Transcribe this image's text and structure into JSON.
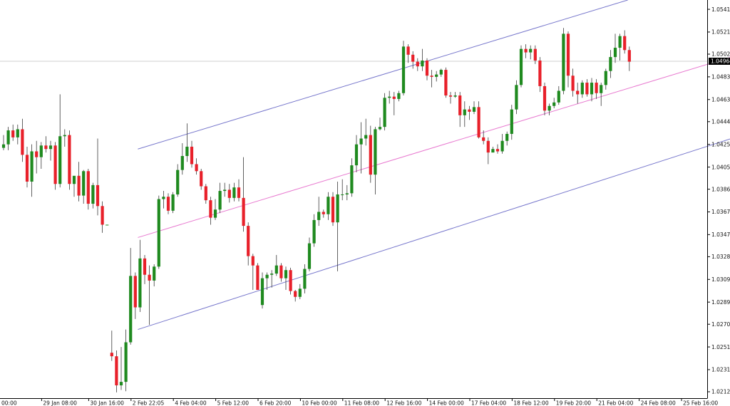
{
  "chart_data": {
    "type": "candlestick",
    "legend": "none",
    "grid": false,
    "colors": {
      "bull": "#1f8a1f",
      "bear": "#e8202a",
      "wick": "#3a3a3a",
      "channel": "#7777cc",
      "midline": "#e87ad0",
      "current_price_line": "#cfcfcf",
      "price_tag_bg": "#000000",
      "axis": "#000000"
    },
    "ylim": [
      1.0207,
      1.0549
    ],
    "y_ticks": [
      "1.05410",
      "1.05215",
      "1.05025",
      "1.04830",
      "1.04635",
      "1.04445",
      "1.04250",
      "1.04055",
      "1.03865",
      "1.03670",
      "1.03475",
      "1.03285",
      "1.03090",
      "1.02895",
      "1.02705",
      "1.02510",
      "1.02315",
      "1.02125"
    ],
    "x_ticks": [
      "00:00",
      "29 Jan 08:00",
      "30 Jan 16:00",
      "2 Feb 22:05",
      "4 Feb 04:00",
      "5 Feb 12:00",
      "6 Feb 20:00",
      "10 Feb 00:00",
      "11 Feb 08:00",
      "12 Feb 16:00",
      "14 Feb 00:00",
      "17 Feb 04:00",
      "18 Feb 12:00",
      "19 Feb 20:00",
      "21 Feb 04:00",
      "24 Feb 08:00",
      "25 Feb 16:00"
    ],
    "x_tick_bar_index": [
      0,
      9,
      19,
      28,
      37,
      46,
      55,
      64,
      73,
      82,
      91,
      100,
      109,
      118,
      127,
      136,
      145
    ],
    "current_price": "1.04964",
    "candles": [
      {
        "o": 1.0422,
        "h": 1.0433,
        "l": 1.042,
        "c": 1.0425
      },
      {
        "o": 1.0425,
        "h": 1.044,
        "l": 1.042,
        "c": 1.0437
      },
      {
        "o": 1.0437,
        "h": 1.0442,
        "l": 1.0428,
        "c": 1.0431
      },
      {
        "o": 1.0431,
        "h": 1.0442,
        "l": 1.0425,
        "c": 1.0438
      },
      {
        "o": 1.0438,
        "h": 1.0447,
        "l": 1.041,
        "c": 1.0416
      },
      {
        "o": 1.0416,
        "h": 1.0423,
        "l": 1.0388,
        "c": 1.0393
      },
      {
        "o": 1.0393,
        "h": 1.0425,
        "l": 1.038,
        "c": 1.0419
      },
      {
        "o": 1.0419,
        "h": 1.0428,
        "l": 1.04,
        "c": 1.0414
      },
      {
        "o": 1.0414,
        "h": 1.0427,
        "l": 1.0404,
        "c": 1.0424
      },
      {
        "o": 1.0424,
        "h": 1.0432,
        "l": 1.0418,
        "c": 1.0421
      },
      {
        "o": 1.0421,
        "h": 1.0428,
        "l": 1.0411,
        "c": 1.0424
      },
      {
        "o": 1.0424,
        "h": 1.0427,
        "l": 1.0386,
        "c": 1.0391
      },
      {
        "o": 1.0391,
        "h": 1.0468,
        "l": 1.0388,
        "c": 1.0432
      },
      {
        "o": 1.0432,
        "h": 1.0438,
        "l": 1.0423,
        "c": 1.0433
      },
      {
        "o": 1.0433,
        "h": 1.0437,
        "l": 1.0386,
        "c": 1.0391
      },
      {
        "o": 1.0391,
        "h": 1.0395,
        "l": 1.038,
        "c": 1.0398
      },
      {
        "o": 1.0398,
        "h": 1.041,
        "l": 1.0376,
        "c": 1.0381
      },
      {
        "o": 1.0381,
        "h": 1.0403,
        "l": 1.0374,
        "c": 1.0402
      },
      {
        "o": 1.0402,
        "h": 1.0404,
        "l": 1.0369,
        "c": 1.0374
      },
      {
        "o": 1.0374,
        "h": 1.0392,
        "l": 1.037,
        "c": 1.039
      },
      {
        "o": 1.039,
        "h": 1.043,
        "l": 1.0364,
        "c": 1.0372
      },
      {
        "o": 1.0372,
        "h": 1.0376,
        "l": 1.0349,
        "c": 1.0356
      },
      {
        "o": 1.0356,
        "h": 1.0356,
        "l": 1.0356,
        "c": 1.0356
      },
      {
        "o": 1.0246,
        "h": 1.0265,
        "l": 1.0239,
        "c": 1.0243
      },
      {
        "o": 1.0243,
        "h": 1.0248,
        "l": 1.0212,
        "c": 1.0218
      },
      {
        "o": 1.0218,
        "h": 1.0251,
        "l": 1.0214,
        "c": 1.0221
      },
      {
        "o": 1.0221,
        "h": 1.0266,
        "l": 1.0213,
        "c": 1.0255
      },
      {
        "o": 1.0255,
        "h": 1.0336,
        "l": 1.0253,
        "c": 1.0312
      },
      {
        "o": 1.0312,
        "h": 1.0315,
        "l": 1.0275,
        "c": 1.0285
      },
      {
        "o": 1.0285,
        "h": 1.0343,
        "l": 1.0281,
        "c": 1.0327
      },
      {
        "o": 1.0327,
        "h": 1.033,
        "l": 1.0305,
        "c": 1.0313
      },
      {
        "o": 1.0313,
        "h": 1.0321,
        "l": 1.027,
        "c": 1.0308
      },
      {
        "o": 1.0308,
        "h": 1.0322,
        "l": 1.0303,
        "c": 1.032
      },
      {
        "o": 1.032,
        "h": 1.0381,
        "l": 1.0318,
        "c": 1.0378
      },
      {
        "o": 1.0378,
        "h": 1.0385,
        "l": 1.037,
        "c": 1.038
      },
      {
        "o": 1.038,
        "h": 1.0383,
        "l": 1.0365,
        "c": 1.0368
      },
      {
        "o": 1.0368,
        "h": 1.0384,
        "l": 1.0366,
        "c": 1.0382
      },
      {
        "o": 1.0382,
        "h": 1.0408,
        "l": 1.038,
        "c": 1.0403
      },
      {
        "o": 1.0403,
        "h": 1.0426,
        "l": 1.0399,
        "c": 1.0415
      },
      {
        "o": 1.0415,
        "h": 1.0443,
        "l": 1.041,
        "c": 1.0423
      },
      {
        "o": 1.0423,
        "h": 1.0428,
        "l": 1.0405,
        "c": 1.0408
      },
      {
        "o": 1.0408,
        "h": 1.0413,
        "l": 1.0399,
        "c": 1.0402
      },
      {
        "o": 1.0402,
        "h": 1.0404,
        "l": 1.0386,
        "c": 1.0389
      },
      {
        "o": 1.0389,
        "h": 1.0391,
        "l": 1.0374,
        "c": 1.0377
      },
      {
        "o": 1.0377,
        "h": 1.038,
        "l": 1.0356,
        "c": 1.0362
      },
      {
        "o": 1.0362,
        "h": 1.0378,
        "l": 1.036,
        "c": 1.0369
      },
      {
        "o": 1.0369,
        "h": 1.0392,
        "l": 1.0366,
        "c": 1.0385
      },
      {
        "o": 1.0385,
        "h": 1.0392,
        "l": 1.038,
        "c": 1.0386
      },
      {
        "o": 1.0386,
        "h": 1.0391,
        "l": 1.0375,
        "c": 1.0379
      },
      {
        "o": 1.0379,
        "h": 1.0392,
        "l": 1.0376,
        "c": 1.0388
      },
      {
        "o": 1.0388,
        "h": 1.0395,
        "l": 1.0376,
        "c": 1.0379
      },
      {
        "o": 1.0379,
        "h": 1.0414,
        "l": 1.035,
        "c": 1.0355
      },
      {
        "o": 1.0355,
        "h": 1.0358,
        "l": 1.0321,
        "c": 1.0329
      },
      {
        "o": 1.0329,
        "h": 1.0331,
        "l": 1.03,
        "c": 1.0321
      },
      {
        "o": 1.0321,
        "h": 1.0323,
        "l": 1.03,
        "c": 1.03
      },
      {
        "o": 1.0287,
        "h": 1.0315,
        "l": 1.0284,
        "c": 1.031
      },
      {
        "o": 1.031,
        "h": 1.0315,
        "l": 1.03,
        "c": 1.0313
      },
      {
        "o": 1.0313,
        "h": 1.0317,
        "l": 1.0302,
        "c": 1.0314
      },
      {
        "o": 1.0314,
        "h": 1.033,
        "l": 1.0312,
        "c": 1.0321
      },
      {
        "o": 1.0321,
        "h": 1.0323,
        "l": 1.0307,
        "c": 1.031
      },
      {
        "o": 1.031,
        "h": 1.032,
        "l": 1.03,
        "c": 1.0317
      },
      {
        "o": 1.0317,
        "h": 1.0319,
        "l": 1.0296,
        "c": 1.0299
      },
      {
        "o": 1.0299,
        "h": 1.03,
        "l": 1.029,
        "c": 1.0294
      },
      {
        "o": 1.0294,
        "h": 1.0305,
        "l": 1.0292,
        "c": 1.0301
      },
      {
        "o": 1.0301,
        "h": 1.0322,
        "l": 1.0297,
        "c": 1.0318
      },
      {
        "o": 1.0318,
        "h": 1.0345,
        "l": 1.0316,
        "c": 1.034
      },
      {
        "o": 1.034,
        "h": 1.0365,
        "l": 1.0337,
        "c": 1.036
      },
      {
        "o": 1.036,
        "h": 1.038,
        "l": 1.0355,
        "c": 1.0367
      },
      {
        "o": 1.0367,
        "h": 1.0369,
        "l": 1.0362,
        "c": 1.0365
      },
      {
        "o": 1.0365,
        "h": 1.0384,
        "l": 1.036,
        "c": 1.038
      },
      {
        "o": 1.038,
        "h": 1.0384,
        "l": 1.0355,
        "c": 1.0358
      },
      {
        "o": 1.0358,
        "h": 1.0393,
        "l": 1.0316,
        "c": 1.0382
      },
      {
        "o": 1.0382,
        "h": 1.0395,
        "l": 1.0377,
        "c": 1.0382
      },
      {
        "o": 1.0382,
        "h": 1.039,
        "l": 1.0377,
        "c": 1.0383
      },
      {
        "o": 1.0383,
        "h": 1.0413,
        "l": 1.038,
        "c": 1.0407
      },
      {
        "o": 1.0407,
        "h": 1.0433,
        "l": 1.0401,
        "c": 1.0425
      },
      {
        "o": 1.0425,
        "h": 1.0444,
        "l": 1.04,
        "c": 1.043
      },
      {
        "o": 1.043,
        "h": 1.0447,
        "l": 1.0424,
        "c": 1.0433
      },
      {
        "o": 1.0433,
        "h": 1.0441,
        "l": 1.0392,
        "c": 1.0399
      },
      {
        "o": 1.0399,
        "h": 1.044,
        "l": 1.0382,
        "c": 1.0438
      },
      {
        "o": 1.0438,
        "h": 1.0448,
        "l": 1.0437,
        "c": 1.044
      },
      {
        "o": 1.044,
        "h": 1.0469,
        "l": 1.0437,
        "c": 1.0465
      },
      {
        "o": 1.0465,
        "h": 1.0471,
        "l": 1.046,
        "c": 1.0466
      },
      {
        "o": 1.0466,
        "h": 1.047,
        "l": 1.045,
        "c": 1.0464
      },
      {
        "o": 1.0464,
        "h": 1.0471,
        "l": 1.0462,
        "c": 1.0469
      },
      {
        "o": 1.0469,
        "h": 1.0514,
        "l": 1.0467,
        "c": 1.0509
      },
      {
        "o": 1.0509,
        "h": 1.0511,
        "l": 1.0495,
        "c": 1.0502
      },
      {
        "o": 1.0502,
        "h": 1.0505,
        "l": 1.049,
        "c": 1.0496
      },
      {
        "o": 1.0496,
        "h": 1.0499,
        "l": 1.0488,
        "c": 1.0492
      },
      {
        "o": 1.0492,
        "h": 1.0507,
        "l": 1.0488,
        "c": 1.0497
      },
      {
        "o": 1.0497,
        "h": 1.0499,
        "l": 1.048,
        "c": 1.0484
      },
      {
        "o": 1.0484,
        "h": 1.0489,
        "l": 1.0474,
        "c": 1.0483
      },
      {
        "o": 1.0483,
        "h": 1.0488,
        "l": 1.0479,
        "c": 1.0485
      },
      {
        "o": 1.0485,
        "h": 1.049,
        "l": 1.0483,
        "c": 1.0489
      },
      {
        "o": 1.0489,
        "h": 1.0491,
        "l": 1.0465,
        "c": 1.0467
      },
      {
        "o": 1.0467,
        "h": 1.047,
        "l": 1.046,
        "c": 1.0466
      },
      {
        "o": 1.0466,
        "h": 1.047,
        "l": 1.0465,
        "c": 1.0467
      },
      {
        "o": 1.0467,
        "h": 1.047,
        "l": 1.044,
        "c": 1.045
      },
      {
        "o": 1.045,
        "h": 1.0462,
        "l": 1.044,
        "c": 1.0455
      },
      {
        "o": 1.0455,
        "h": 1.0458,
        "l": 1.0446,
        "c": 1.0453
      },
      {
        "o": 1.0453,
        "h": 1.0462,
        "l": 1.0451,
        "c": 1.0457
      },
      {
        "o": 1.0457,
        "h": 1.0462,
        "l": 1.043,
        "c": 1.0431
      },
      {
        "o": 1.0431,
        "h": 1.0437,
        "l": 1.0425,
        "c": 1.0428
      },
      {
        "o": 1.0428,
        "h": 1.0431,
        "l": 1.0408,
        "c": 1.0418
      },
      {
        "o": 1.0418,
        "h": 1.0423,
        "l": 1.0419,
        "c": 1.0421
      },
      {
        "o": 1.0421,
        "h": 1.0425,
        "l": 1.0417,
        "c": 1.0419
      },
      {
        "o": 1.0419,
        "h": 1.0434,
        "l": 1.0417,
        "c": 1.0428
      },
      {
        "o": 1.0428,
        "h": 1.0436,
        "l": 1.0424,
        "c": 1.0434
      },
      {
        "o": 1.0434,
        "h": 1.0459,
        "l": 1.0429,
        "c": 1.0455
      },
      {
        "o": 1.0455,
        "h": 1.048,
        "l": 1.0451,
        "c": 1.0476
      },
      {
        "o": 1.0476,
        "h": 1.051,
        "l": 1.0474,
        "c": 1.0507
      },
      {
        "o": 1.0507,
        "h": 1.0511,
        "l": 1.0499,
        "c": 1.0504
      },
      {
        "o": 1.0504,
        "h": 1.051,
        "l": 1.0498,
        "c": 1.0507
      },
      {
        "o": 1.0507,
        "h": 1.051,
        "l": 1.0494,
        "c": 1.0497
      },
      {
        "o": 1.0497,
        "h": 1.05,
        "l": 1.047,
        "c": 1.0475
      },
      {
        "o": 1.0475,
        "h": 1.0478,
        "l": 1.045,
        "c": 1.0454
      },
      {
        "o": 1.0454,
        "h": 1.046,
        "l": 1.045,
        "c": 1.0458
      },
      {
        "o": 1.0458,
        "h": 1.0465,
        "l": 1.0456,
        "c": 1.0461
      },
      {
        "o": 1.0461,
        "h": 1.0475,
        "l": 1.0459,
        "c": 1.0471
      },
      {
        "o": 1.0471,
        "h": 1.0525,
        "l": 1.0468,
        "c": 1.052
      },
      {
        "o": 1.052,
        "h": 1.0522,
        "l": 1.0474,
        "c": 1.0484
      },
      {
        "o": 1.0484,
        "h": 1.049,
        "l": 1.0466,
        "c": 1.0471
      },
      {
        "o": 1.0471,
        "h": 1.0478,
        "l": 1.046,
        "c": 1.0468
      },
      {
        "o": 1.0468,
        "h": 1.048,
        "l": 1.0465,
        "c": 1.0478
      },
      {
        "o": 1.0478,
        "h": 1.0481,
        "l": 1.0466,
        "c": 1.0468
      },
      {
        "o": 1.0468,
        "h": 1.0482,
        "l": 1.0462,
        "c": 1.0478
      },
      {
        "o": 1.0478,
        "h": 1.0481,
        "l": 1.0464,
        "c": 1.0469
      },
      {
        "o": 1.0469,
        "h": 1.0478,
        "l": 1.0458,
        "c": 1.0476
      },
      {
        "o": 1.0476,
        "h": 1.049,
        "l": 1.0472,
        "c": 1.0488
      },
      {
        "o": 1.0488,
        "h": 1.0506,
        "l": 1.0482,
        "c": 1.05
      },
      {
        "o": 1.05,
        "h": 1.052,
        "l": 1.0495,
        "c": 1.0508
      },
      {
        "o": 1.0508,
        "h": 1.052,
        "l": 1.0497,
        "c": 1.0518
      },
      {
        "o": 1.0518,
        "h": 1.0523,
        "l": 1.0503,
        "c": 1.0506
      },
      {
        "o": 1.0506,
        "h": 1.0509,
        "l": 1.0488,
        "c": 1.0496
      }
    ],
    "channel": {
      "start_bar": 29,
      "end_bar": 155,
      "mid_start": 1.0345,
      "mid_end": 1.0501,
      "upper_start": 1.0421,
      "upper_end": 1.0577,
      "lower_start": 1.0266,
      "lower_end": 1.0431
    }
  }
}
